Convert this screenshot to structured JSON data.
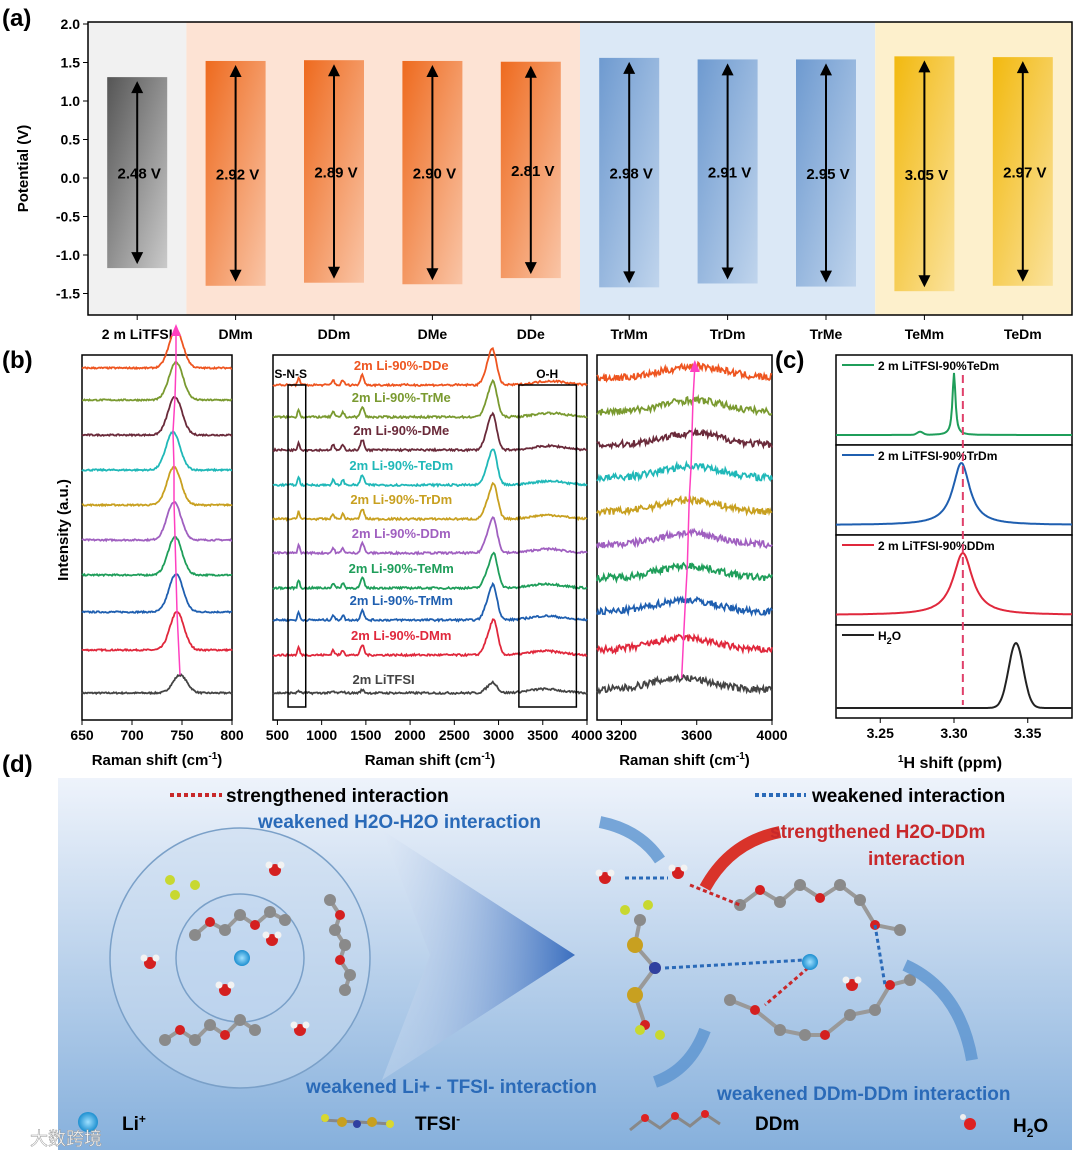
{
  "panel_labels": {
    "a": "(a)",
    "b": "(b)",
    "c": "(c)",
    "d": "(d)"
  },
  "chart_data": [
    {
      "id": "a",
      "type": "bar",
      "ylabel": "Potential (V)",
      "ylim": [
        -1.8,
        2.0
      ],
      "yticks": [
        "2.0",
        "1.5",
        "1.0",
        "0.5",
        "0.0",
        "-0.5",
        "-1.0",
        "-1.5"
      ],
      "ytick_values": [
        2.0,
        1.5,
        1.0,
        0.5,
        0.0,
        -0.5,
        -1.0,
        -1.5
      ],
      "categories": [
        "2 m LiTFSI",
        "DMm",
        "DDm",
        "DMe",
        "DDe",
        "TrMm",
        "TrDm",
        "TrMe",
        "TeMm",
        "TeDm"
      ],
      "groups": [
        "reference",
        "D",
        "D",
        "D",
        "D",
        "Tr",
        "Tr",
        "Tr",
        "Te",
        "Te"
      ],
      "group_colors": {
        "reference": "#f1f1f1",
        "D": "#fde3d4",
        "Tr": "#dbe8f6",
        "Te": "#fdf0cc"
      },
      "bar_colors": {
        "reference": "#555555",
        "D": "#ee6a1e",
        "Tr": "#6e9ad0",
        "Te": "#f2b90f"
      },
      "lower": [
        -1.17,
        -1.4,
        -1.36,
        -1.38,
        -1.3,
        -1.42,
        -1.37,
        -1.41,
        -1.47,
        -1.4
      ],
      "upper": [
        1.31,
        1.52,
        1.53,
        1.52,
        1.51,
        1.56,
        1.54,
        1.54,
        1.58,
        1.57
      ],
      "window_labels": [
        "2.48 V",
        "2.92 V",
        "2.89 V",
        "2.90 V",
        "2.81 V",
        "2.98 V",
        "2.91 V",
        "2.95 V",
        "3.05 V",
        "2.97 V"
      ]
    },
    {
      "id": "b",
      "type": "line",
      "ylabel": "Intensity (a.u.)",
      "series": [
        {
          "name": "2m LiTFSI",
          "color": "#444444",
          "peak_svs": 748,
          "peak_ch": 2940,
          "peak_oh": 3520
        },
        {
          "name": "2m Li-90%-DMm",
          "color": "#e0283c",
          "peak_svs": 745,
          "peak_ch": 2945,
          "peak_oh": 3530
        },
        {
          "name": "2m Li-90%-TrMm",
          "color": "#1f5fb0",
          "peak_svs": 744,
          "peak_ch": 2940,
          "peak_oh": 3540
        },
        {
          "name": "2m Li-90%-TeMm",
          "color": "#1f9e5a",
          "peak_svs": 743,
          "peak_ch": 2945,
          "peak_oh": 3550
        },
        {
          "name": "2m Li-90%-DDm",
          "color": "#a060c0",
          "peak_svs": 742,
          "peak_ch": 2940,
          "peak_oh": 3555
        },
        {
          "name": "2m Li-90%-TrDm",
          "color": "#c8a020",
          "peak_svs": 742,
          "peak_ch": 2945,
          "peak_oh": 3560
        },
        {
          "name": "2m Li-90%-TeDm",
          "color": "#20b8b8",
          "peak_svs": 741,
          "peak_ch": 2940,
          "peak_oh": 3570
        },
        {
          "name": "2m Li-90%-DMe",
          "color": "#6a2a3a",
          "peak_svs": 743,
          "peak_ch": 2935,
          "peak_oh": 3575
        },
        {
          "name": "2m Li-90%-TrMe",
          "color": "#7a9a30",
          "peak_svs": 744,
          "peak_ch": 2940,
          "peak_oh": 3580
        },
        {
          "name": "2m Li-90%-DDe",
          "color": "#ee5520",
          "peak_svs": 744,
          "peak_ch": 2935,
          "peak_oh": 3590
        }
      ],
      "subplots": [
        {
          "xlabel": "Raman shift (cm-1)",
          "xlim": [
            650,
            800
          ],
          "xticks": [
            650,
            700,
            750,
            800
          ]
        },
        {
          "xlabel": "Raman shift (cm-1)",
          "xlim": [
            450,
            4000
          ],
          "xticks": [
            500,
            1000,
            1500,
            2000,
            2500,
            3000,
            3500,
            4000
          ],
          "box_labels": [
            "S-N-S",
            "O-H"
          ]
        },
        {
          "xlabel": "Raman shift (cm-1)",
          "xlim": [
            3070,
            4000
          ],
          "xticks": [
            3200,
            3600,
            4000
          ]
        }
      ]
    },
    {
      "id": "c",
      "type": "line",
      "xlabel_prefix": "1",
      "xlabel": "H shift (ppm)",
      "xlim": [
        3.22,
        3.38
      ],
      "xticks": [
        "3.25",
        "3.30",
        "3.35"
      ],
      "xtick_values": [
        3.25,
        3.3,
        3.35
      ],
      "reference_line": 3.306,
      "series": [
        {
          "name": "2 m LiTFSI-90%TeDm",
          "color": "#1f9e5a",
          "peak": 3.3,
          "width": 0.0012
        },
        {
          "name": "2 m LiTFSI-90%TrDm",
          "color": "#1f5fb0",
          "peak": 3.305,
          "width": 0.007
        },
        {
          "name": "2 m LiTFSI-90%DDm",
          "color": "#e0283c",
          "peak": 3.306,
          "width": 0.008
        },
        {
          "name": "H",
          "name_sub": "2",
          "name_end": "O",
          "color": "#222222",
          "peak": 3.342,
          "width": 0.005
        }
      ]
    }
  ],
  "diagram": {
    "legend": {
      "strengthened": "strengthened interaction",
      "weakened": "weakened interaction"
    },
    "annotations": {
      "h2o_h2o": "weakened H2O-H2O interaction",
      "h2o_ddm_1": "strengthened H2O-DDm",
      "h2o_ddm_2": "interaction",
      "li_tfsi": "weakened Li+ - TFSI- interaction",
      "ddm_ddm": "weakened DDm-DDm interaction"
    },
    "species": {
      "li": "Li",
      "li_sup": "+",
      "tfsi": "TFSI",
      "tfsi_sup": "-",
      "ddm": "DDm",
      "h2o": "H",
      "h2o_sub": "2",
      "h2o_end": "O"
    },
    "colors": {
      "red": "#c8282a",
      "blue": "#2a6ab8"
    }
  },
  "watermark": "大数跨境"
}
